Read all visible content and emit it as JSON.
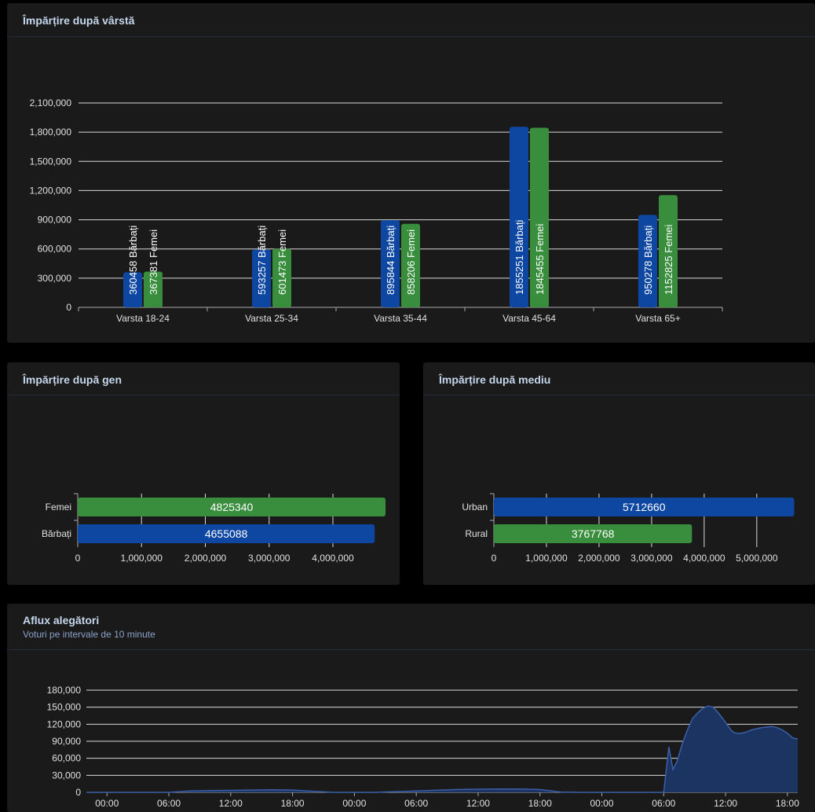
{
  "colors": {
    "male": "#0d47a1",
    "female": "#388e3c",
    "urban": "#0d47a1",
    "rural": "#388e3c",
    "flow_fill": "#1c3462",
    "flow_line": "#3b5fa8"
  },
  "age_panel": {
    "title": "Împărțire după vârstă"
  },
  "gender_panel": {
    "title": "Împărțire după gen"
  },
  "environment_panel": {
    "title": "Împărțire după mediu"
  },
  "flow_panel": {
    "title": "Aflux alegători",
    "subtitle": "Voturi pe intervale de 10 minute"
  },
  "chart_data": [
    {
      "id": "age",
      "type": "bar",
      "categories": [
        "Varsta 18-24",
        "Varsta 25-34",
        "Varsta 35-44",
        "Varsta 45-64",
        "Varsta 65+"
      ],
      "series": [
        {
          "name": "Bărbați",
          "color": "male",
          "values": [
            360458,
            593257,
            895844,
            1855251,
            950278
          ]
        },
        {
          "name": "Femei",
          "color": "female",
          "values": [
            367381,
            601473,
            858206,
            1845455,
            1152825
          ]
        }
      ],
      "yticks": [
        "0",
        "300,000",
        "600,000",
        "900,000",
        "1,200,000",
        "1,500,000",
        "1,800,000",
        "2,100,000"
      ],
      "ylim": [
        0,
        2100000
      ],
      "grid": true
    },
    {
      "id": "gender",
      "type": "bar",
      "orientation": "horizontal",
      "categories": [
        "Femei",
        "Bărbați"
      ],
      "values": [
        4825340,
        4655088
      ],
      "colors": [
        "female",
        "male"
      ],
      "xticks": [
        "0",
        "1,000,000",
        "2,000,000",
        "3,000,000",
        "4,000,000"
      ],
      "xlim": [
        0,
        4800000
      ],
      "grid": true
    },
    {
      "id": "environment",
      "type": "bar",
      "orientation": "horizontal",
      "categories": [
        "Urban",
        "Rural"
      ],
      "values": [
        5712660,
        3767768
      ],
      "colors": [
        "urban",
        "rural"
      ],
      "xticks": [
        "0",
        "1,000,000",
        "2,000,000",
        "3,000,000",
        "4,000,000",
        "5,000,000"
      ],
      "xlim": [
        0,
        5600000
      ],
      "grid": true
    },
    {
      "id": "flow",
      "type": "area",
      "yticks": [
        "0",
        "30,000",
        "60,000",
        "90,000",
        "120,000",
        "150,000",
        "180,000"
      ],
      "ylim": [
        0,
        180000
      ],
      "xticks": [
        "00:00",
        "06:00",
        "12:00",
        "18:00",
        "00:00",
        "06:00",
        "12:00",
        "18:00",
        "00:00",
        "06:00",
        "12:00",
        "18:00"
      ],
      "x_hours_range": [
        -2,
        67
      ],
      "x_hours": [
        -2,
        6,
        8,
        10,
        12,
        14,
        16,
        18,
        20,
        22,
        24,
        26,
        30,
        34,
        36,
        38,
        40,
        42,
        44,
        46,
        48,
        50,
        52,
        54,
        54.5,
        54.9,
        55.3,
        55.8,
        56.3,
        56.8,
        57.3,
        57.8,
        58.3,
        58.8,
        59.3,
        59.8,
        60.2,
        60.6,
        61.0,
        61.5,
        62.0,
        62.5,
        63.0,
        63.5,
        64.0,
        64.5,
        65.0,
        65.5,
        66.0,
        66.5,
        67
      ],
      "y_values": [
        0,
        0,
        2500,
        3000,
        3500,
        4000,
        4500,
        4000,
        2000,
        0,
        0,
        0,
        2500,
        5000,
        5500,
        6000,
        6000,
        5000,
        500,
        0,
        0,
        0,
        0,
        0,
        80000,
        40000,
        55000,
        85000,
        110000,
        130000,
        140000,
        148000,
        152000,
        150000,
        140000,
        128000,
        118000,
        108000,
        104000,
        104000,
        106000,
        110000,
        112000,
        114000,
        115000,
        116000,
        114000,
        110000,
        104000,
        96000,
        94000
      ]
    }
  ]
}
